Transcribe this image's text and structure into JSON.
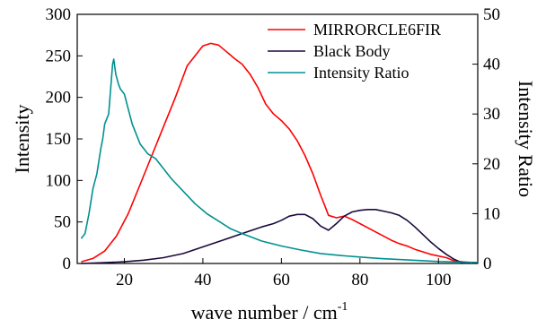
{
  "chart_data": {
    "type": "line",
    "xlabel": "wave number / cm",
    "xlabel_superscript": "-1",
    "ylabel_left": "Intensity",
    "ylabel_right": "Intensity Ratio",
    "xlim": [
      8,
      110
    ],
    "ylim_left": [
      0,
      300
    ],
    "ylim_right": [
      0,
      50
    ],
    "x_ticks": [
      20,
      40,
      60,
      80,
      100
    ],
    "y_left_ticks": [
      0,
      50,
      100,
      150,
      200,
      250,
      300
    ],
    "y_right_ticks": [
      0,
      10,
      20,
      30,
      40,
      50
    ],
    "grid": false,
    "legend_position": "top-right",
    "series": [
      {
        "name": "MIRRORCLE6FIR",
        "axis": "left",
        "color": "#ff0000",
        "points": [
          [
            9,
            2
          ],
          [
            12,
            6
          ],
          [
            15,
            15
          ],
          [
            18,
            33
          ],
          [
            21,
            60
          ],
          [
            24,
            95
          ],
          [
            27,
            130
          ],
          [
            30,
            165
          ],
          [
            33,
            200
          ],
          [
            36,
            238
          ],
          [
            38,
            250
          ],
          [
            40,
            262
          ],
          [
            42,
            265
          ],
          [
            44,
            263
          ],
          [
            46,
            255
          ],
          [
            48,
            247
          ],
          [
            50,
            240
          ],
          [
            52,
            228
          ],
          [
            54,
            212
          ],
          [
            56,
            192
          ],
          [
            58,
            180
          ],
          [
            60,
            172
          ],
          [
            62,
            162
          ],
          [
            64,
            148
          ],
          [
            66,
            130
          ],
          [
            68,
            108
          ],
          [
            70,
            82
          ],
          [
            71,
            70
          ],
          [
            72,
            58
          ],
          [
            74,
            55
          ],
          [
            76,
            57
          ],
          [
            78,
            53
          ],
          [
            80,
            48
          ],
          [
            82,
            43
          ],
          [
            84,
            38
          ],
          [
            86,
            33
          ],
          [
            88,
            28
          ],
          [
            90,
            24
          ],
          [
            92,
            21
          ],
          [
            94,
            17
          ],
          [
            96,
            14
          ],
          [
            98,
            11
          ],
          [
            100,
            9
          ],
          [
            102,
            7
          ],
          [
            104,
            3
          ],
          [
            106,
            2
          ],
          [
            108,
            1
          ],
          [
            110,
            1
          ]
        ]
      },
      {
        "name": "Black Body",
        "axis": "left",
        "color": "#1a0a3c",
        "points": [
          [
            9,
            0
          ],
          [
            15,
            1
          ],
          [
            20,
            2
          ],
          [
            25,
            4
          ],
          [
            30,
            7
          ],
          [
            35,
            12
          ],
          [
            40,
            20
          ],
          [
            45,
            28
          ],
          [
            50,
            36
          ],
          [
            55,
            44
          ],
          [
            58,
            48
          ],
          [
            60,
            52
          ],
          [
            62,
            57
          ],
          [
            64,
            59
          ],
          [
            66,
            59
          ],
          [
            68,
            54
          ],
          [
            70,
            45
          ],
          [
            72,
            40
          ],
          [
            74,
            48
          ],
          [
            76,
            57
          ],
          [
            78,
            62
          ],
          [
            80,
            64
          ],
          [
            82,
            65
          ],
          [
            84,
            65
          ],
          [
            86,
            63
          ],
          [
            88,
            61
          ],
          [
            90,
            58
          ],
          [
            92,
            52
          ],
          [
            94,
            44
          ],
          [
            96,
            35
          ],
          [
            98,
            26
          ],
          [
            100,
            18
          ],
          [
            102,
            11
          ],
          [
            104,
            5
          ],
          [
            106,
            1
          ],
          [
            108,
            0
          ]
        ]
      },
      {
        "name": "Intensity Ratio",
        "axis": "right",
        "color": "#009090",
        "points": [
          [
            9,
            5
          ],
          [
            10,
            6
          ],
          [
            11,
            10
          ],
          [
            12,
            15
          ],
          [
            13,
            18
          ],
          [
            14,
            23
          ],
          [
            14.5,
            25
          ],
          [
            15,
            28
          ],
          [
            15.5,
            29
          ],
          [
            16,
            30
          ],
          [
            16.5,
            35
          ],
          [
            17,
            40
          ],
          [
            17.3,
            41
          ],
          [
            17.8,
            38
          ],
          [
            18.5,
            36
          ],
          [
            19,
            35
          ],
          [
            20,
            34
          ],
          [
            21,
            31
          ],
          [
            22,
            28
          ],
          [
            23,
            26
          ],
          [
            24,
            24
          ],
          [
            26,
            22
          ],
          [
            28,
            21
          ],
          [
            30,
            19
          ],
          [
            32,
            17
          ],
          [
            35,
            14.5
          ],
          [
            38,
            12
          ],
          [
            41,
            10
          ],
          [
            44,
            8.5
          ],
          [
            47,
            7
          ],
          [
            50,
            6
          ],
          [
            55,
            4.5
          ],
          [
            60,
            3.5
          ],
          [
            65,
            2.7
          ],
          [
            70,
            2
          ],
          [
            75,
            1.6
          ],
          [
            80,
            1.3
          ],
          [
            85,
            1
          ],
          [
            90,
            0.8
          ],
          [
            95,
            0.6
          ],
          [
            100,
            0.4
          ],
          [
            105,
            0.3
          ],
          [
            110,
            0.2
          ]
        ]
      }
    ]
  }
}
